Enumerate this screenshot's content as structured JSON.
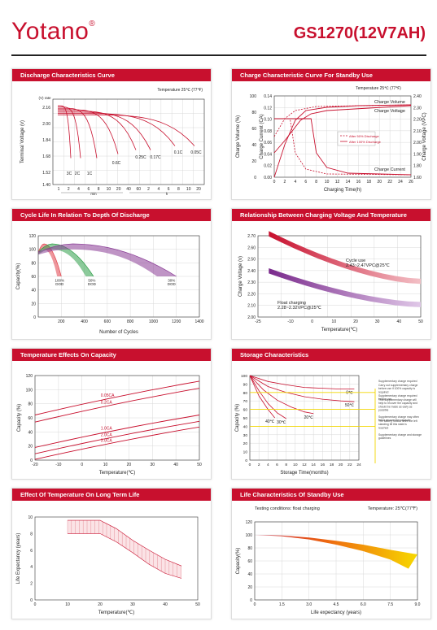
{
  "header": {
    "brand": "Yotano",
    "brand_mark": "®",
    "model": "GS1270(12V7AH)"
  },
  "colors": {
    "accent": "#c8102e",
    "green": "#2e9e48",
    "purple": "#8a3d96",
    "yellow": "#f2d600"
  },
  "chart_data": [
    {
      "key": "discharge",
      "type": "line",
      "title": "Discharge Characteristics Curve",
      "annotation": "Temperature 25℃ (77℉)",
      "ylabel": "Terminal Voltage (v)",
      "ylabel_unit": "(V) rate",
      "xlabel": "Discharge Time",
      "x_sub_labels": [
        "min",
        "h"
      ],
      "ylim": [
        1.4,
        2.24
      ],
      "y_ticks": [
        "2.16",
        "2.00",
        "1.84",
        "1.68",
        "1.52",
        "1.40"
      ],
      "x_ticks": [
        "1",
        "2",
        "4",
        "6",
        "8",
        "10",
        "20",
        "40",
        "60",
        "2",
        "4",
        "6",
        "8",
        "10",
        "20"
      ],
      "series_labels": [
        "3C",
        "2C",
        "1C",
        "0.6C",
        "0.25C",
        "0.17C",
        "0.1C",
        "0.05C"
      ]
    },
    {
      "key": "charge",
      "type": "line",
      "title": "Charge Characteristic Curve For Standby Use",
      "annotation": "Temperature 25℃ (77℉)",
      "ylabel_left_outer": "Charge Volume (%)",
      "ylabel_left_inner": "Charge Current (CA)",
      "ylabel_right": "Charge Voltage (VPC)",
      "xlabel": "Charging Time(h)",
      "y_outer_ticks": [
        "100",
        "80",
        "60",
        "40",
        "20",
        "0"
      ],
      "y_inner_ticks": [
        "0.14",
        "0.12",
        "0.10",
        "0.08",
        "0.06",
        "0.04",
        "0.02",
        "0.00"
      ],
      "y_right_ticks": [
        "2.40",
        "2.30",
        "2.20",
        "2.10",
        "2.00",
        "1.90",
        "1.80",
        "1.60"
      ],
      "x_ticks": [
        "0",
        "2",
        "4",
        "6",
        "8",
        "10",
        "12",
        "14",
        "16",
        "18",
        "20",
        "22",
        "24",
        "26"
      ],
      "series_labels": [
        "Charge Volume",
        "Charge Voltage",
        "Charge Current"
      ],
      "legend": [
        "After 50% Discharge",
        "After 100% Discharge"
      ]
    },
    {
      "key": "cycle",
      "type": "area",
      "title": "Cycle Life In Relation To Depth Of Discharge",
      "ylabel": "Capacity(%)",
      "xlabel": "Number of Cycles",
      "xlim": [
        0,
        1400
      ],
      "ylim": [
        0,
        120
      ],
      "x_ticks": [
        "200",
        "400",
        "600",
        "800",
        "1000",
        "1200",
        "1400"
      ],
      "y_ticks": [
        "120",
        "100",
        "80",
        "60",
        "40",
        "20",
        "0"
      ],
      "series": [
        {
          "name": "100% DOD",
          "lines": [
            "100%",
            "DOD"
          ],
          "end_cycles": 200
        },
        {
          "name": "50% DOD",
          "lines": [
            "50%",
            "DOD"
          ],
          "end_cycles": 480
        },
        {
          "name": "30% DOD",
          "lines": [
            "30%",
            "DOD"
          ],
          "end_cycles": 1200
        }
      ]
    },
    {
      "key": "relation",
      "type": "area",
      "title": "Relationship Between Charging Voltage And Temperature",
      "ylabel": "Charge Voltage (v)",
      "xlabel": "Temperature(℃)",
      "xlim": [
        -25,
        50
      ],
      "ylim": [
        2.0,
        2.7
      ],
      "x_ticks": [
        "-25",
        "-10",
        "0",
        "10",
        "20",
        "30",
        "40",
        "50"
      ],
      "y_ticks": [
        "2.70",
        "2.60",
        "2.50",
        "2.40",
        "2.30",
        "2.20",
        "2.10",
        "2.00"
      ],
      "series": [
        {
          "name": "Cycle use",
          "note": "2.43~2.47VPC@25℃"
        },
        {
          "name": "Float charging",
          "note": "2.28~2.32VPC@25℃"
        }
      ]
    },
    {
      "key": "temp_effect",
      "type": "line",
      "title": "Temperature Effects On Capacity",
      "ylabel": "Capacity (%)",
      "xlabel": "Temperature(℃)",
      "xlim": [
        -20,
        50
      ],
      "ylim": [
        0,
        120
      ],
      "x_ticks": [
        "-20",
        "-10",
        "0",
        "10",
        "20",
        "30",
        "40",
        "50"
      ],
      "y_ticks": [
        "120",
        "100",
        "80",
        "60",
        "40",
        "20",
        "0"
      ],
      "series": [
        {
          "name": "0.05CA",
          "x": [
            -20,
            50
          ],
          "y": [
            64,
            112
          ]
        },
        {
          "name": "0.2CA",
          "x": [
            -20,
            50
          ],
          "y": [
            54,
            102
          ]
        },
        {
          "name": "1.0CA",
          "x": [
            -20,
            50
          ],
          "y": [
            18,
            64
          ]
        },
        {
          "name": "2.0CA",
          "x": [
            -20,
            50
          ],
          "y": [
            9,
            55
          ]
        },
        {
          "name": "3.0CA",
          "x": [
            -20,
            50
          ],
          "y": [
            1,
            47
          ]
        }
      ]
    },
    {
      "key": "storage",
      "type": "line",
      "title": "Storage Characteristics",
      "ylabel": "Capacity (%)",
      "xlabel": "Storage Time(months)",
      "xlim": [
        0,
        24
      ],
      "ylim": [
        0,
        100
      ],
      "x_ticks": [
        "0",
        "2",
        "4",
        "6",
        "8",
        "10",
        "12",
        "14",
        "16",
        "18",
        "20",
        "22",
        "24"
      ],
      "y_ticks": [
        "100",
        "90",
        "80",
        "70",
        "60",
        "50",
        "40",
        "30",
        "20",
        "10",
        "0"
      ],
      "series": [
        {
          "name": "0℃",
          "x": [
            0,
            4,
            8,
            12,
            16,
            20,
            23
          ],
          "y": [
            100,
            93,
            89,
            86,
            85,
            84,
            84
          ]
        },
        {
          "name": "20℃",
          "x": [
            0,
            3,
            6,
            9,
            12,
            14
          ],
          "y": [
            100,
            83,
            71,
            63,
            57,
            55
          ]
        },
        {
          "name": "30℃",
          "x": [
            0,
            2,
            4,
            6,
            8
          ],
          "y": [
            100,
            82,
            67,
            56,
            49
          ]
        },
        {
          "name": "40℃",
          "x": [
            0,
            2,
            4,
            5.5
          ],
          "y": [
            100,
            76,
            60,
            50
          ]
        },
        {
          "name": "50℃",
          "x": [
            0,
            4,
            8,
            12,
            16,
            20,
            23
          ],
          "y": [
            100,
            87,
            80,
            75,
            72,
            70,
            69
          ]
        }
      ],
      "notes": [
        "Supplementary charge required",
        "Carry out supplementary charge before use if 100% capacity is required",
        "Supplementary charge required before use",
        "This supplementary charge will help to recover the capacity and should be made as early as possible",
        "Supplementary charge may often fail to recover the capacity",
        "The battery should never be left standing till this state is reached",
        "Supplementary charge and storage guidelines"
      ]
    },
    {
      "key": "longterm",
      "type": "area",
      "title": "Effect Of Temperature On Long Term Life",
      "ylabel": "Life Expectancy (years)",
      "xlabel": "Temperature(℃)",
      "xlim": [
        0,
        50
      ],
      "ylim": [
        0,
        10
      ],
      "x_ticks": [
        "0",
        "10",
        "20",
        "30",
        "40",
        "50"
      ],
      "y_ticks": [
        "10",
        "8",
        "6",
        "4",
        "2",
        "0"
      ],
      "upper": {
        "x": [
          10,
          20,
          25,
          30,
          35,
          40,
          45
        ],
        "y": [
          9.6,
          9.6,
          8.6,
          7.2,
          6.0,
          4.9,
          4.1
        ]
      },
      "lower": {
        "x": [
          10,
          20,
          25,
          30,
          35,
          40,
          45
        ],
        "y": [
          8.0,
          8.0,
          7.0,
          5.7,
          4.3,
          3.2,
          2.6
        ]
      }
    },
    {
      "key": "standby",
      "type": "area",
      "title": "Life Characteristics Of Standby Use",
      "condition": "Testing conditions: float charging",
      "annotation": "Temperature: 25℃(77℉)",
      "ylabel": "Capacity(%)",
      "xlabel": "Life expectancy (years)",
      "xlim": [
        0,
        9.0
      ],
      "ylim": [
        0,
        120
      ],
      "x_ticks": [
        "0",
        "1.5",
        "3.0",
        "4.5",
        "6.0",
        "7.5",
        "9.0"
      ],
      "y_ticks": [
        "120",
        "100",
        "80",
        "60",
        "40",
        "20",
        "0"
      ],
      "upper": {
        "x": [
          0,
          1.5,
          3.0,
          4.5,
          6.0,
          7.5,
          9.0
        ],
        "y": [
          100,
          99,
          96,
          91,
          85,
          77,
          70
        ]
      },
      "lower": {
        "x": [
          0,
          1.5,
          3.0,
          4.5,
          6.0,
          7.5,
          8.5
        ],
        "y": [
          100,
          98,
          93,
          85,
          75,
          62,
          48
        ]
      }
    }
  ]
}
